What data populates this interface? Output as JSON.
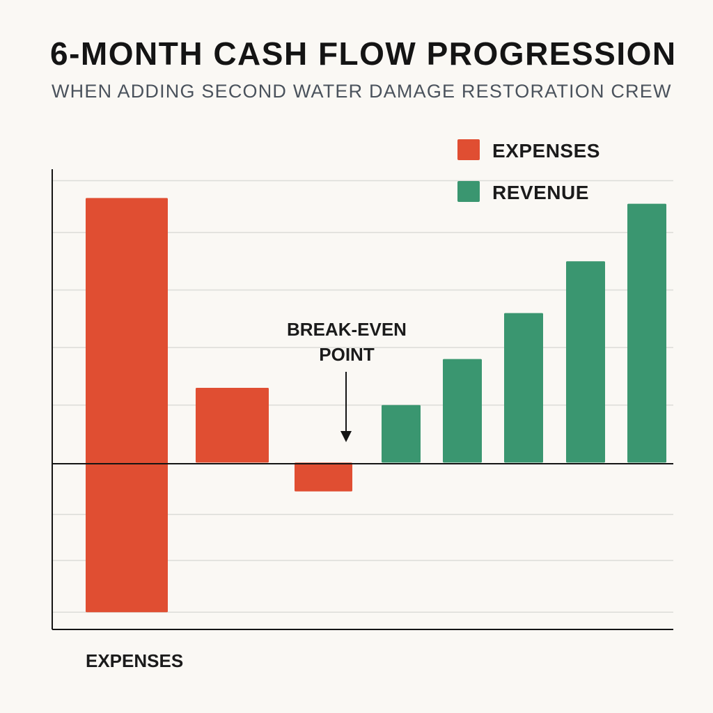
{
  "chart_data": {
    "type": "bar",
    "title": "6-MONTH CASH FLOW PROGRESSION",
    "subtitle": "WHEN ADDING SECOND WATER DAMAGE RESTORATION CREW",
    "xlabel": "",
    "ylabel": "",
    "categories": [
      "",
      "",
      "",
      "",
      "",
      "",
      "",
      ""
    ],
    "series": [
      {
        "name": "EXPENSES",
        "color": "#e04e32",
        "values": [
          null,
          null,
          -0.5,
          null,
          null,
          null,
          null,
          null
        ]
      },
      {
        "name": "REVENUE",
        "color": "#3a9670",
        "values": [
          null,
          null,
          null,
          1.0,
          1.8,
          2.6,
          3.5,
          4.5
        ]
      }
    ],
    "extra_expense_bars": [
      {
        "top": 4.6,
        "bottom": -2.6
      },
      {
        "top": 1.3,
        "bottom": 0
      }
    ],
    "ylim": [
      -2.9,
      5.1
    ],
    "grid": true,
    "legend": {
      "position": "top-right",
      "items": [
        "EXPENSES",
        "REVENUE"
      ]
    },
    "annotations": [
      {
        "text_lines": [
          "BREAK-EVEN",
          "POINT"
        ],
        "arrow": "down"
      }
    ],
    "bottom_label": "EXPENSES"
  }
}
